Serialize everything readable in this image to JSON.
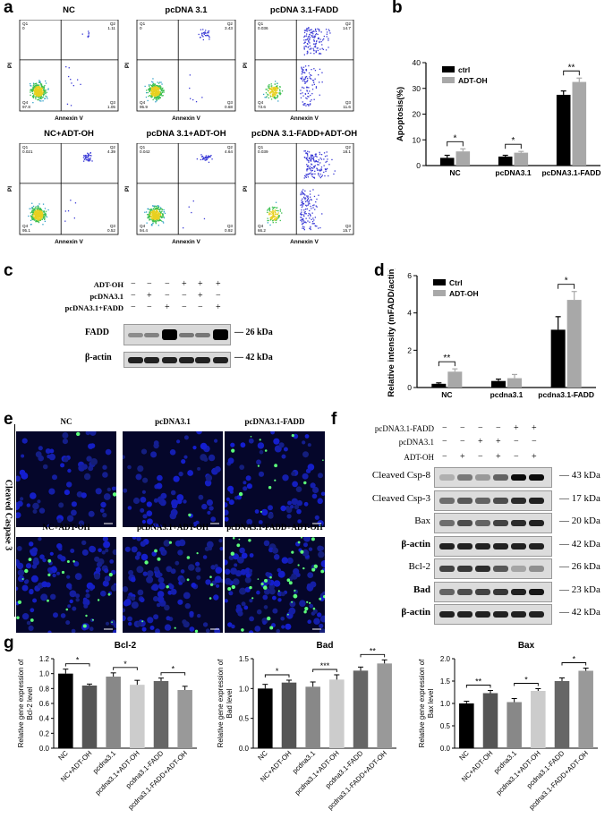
{
  "panel_labels": {
    "a": "a",
    "b": "b",
    "c": "c",
    "d": "d",
    "e": "e",
    "f": "f",
    "g": "g"
  },
  "panel_a": {
    "titles": [
      "NC",
      "pcDNA 3.1",
      "pcDNA 3.1-FADD",
      "NC+ADT-OH",
      "pcDNA 3.1+ADT-OH",
      "pcDNA 3.1-FADD+ADT-OH"
    ],
    "axis_x": "Annexin V",
    "axis_y": "PI",
    "quadrants": [
      {
        "q1": "0",
        "q2": "1.11",
        "q3": "1.05",
        "q4": "97.8",
        "q1l": "Q1",
        "q2l": "Q2",
        "q3l": "Q3",
        "q4l": "Q4"
      },
      {
        "q1": "0",
        "q2": "3.43",
        "q3": "0.68",
        "q4": "95.9",
        "q1l": "Q1",
        "q2l": "Q2",
        "q3l": "Q3",
        "q4l": "Q4"
      },
      {
        "q1": "0.036",
        "q2": "14.7",
        "q3": "11.6",
        "q4": "73.6",
        "q1l": "Q1",
        "q2l": "Q2",
        "q3l": "Q3",
        "q4l": "Q4"
      },
      {
        "q1": "0.021",
        "q2": "4.39",
        "q3": "0.52",
        "q4": "95.1",
        "q1l": "Q1",
        "q2l": "Q2",
        "q3l": "Q3",
        "q4l": "Q4"
      },
      {
        "q1": "0.042",
        "q2": "4.64",
        "q3": "0.92",
        "q4": "94.4",
        "q1l": "Q1",
        "q2l": "Q2",
        "q3l": "Q3",
        "q4l": "Q4"
      },
      {
        "q1": "0.039",
        "q2": "18.1",
        "q3": "15.7",
        "q4": "66.2",
        "q1l": "Q1",
        "q2l": "Q2",
        "q3l": "Q3",
        "q4l": "Q4"
      }
    ]
  },
  "panel_c": {
    "row_labels": [
      "ADT-OH",
      "pcDNA3.1",
      "pcDNA3.1+FADD"
    ],
    "signs": [
      [
        "−",
        "−",
        "−",
        "+",
        "+",
        "+"
      ],
      [
        "−",
        "+",
        "−",
        "−",
        "+",
        "−"
      ],
      [
        "−",
        "−",
        "+",
        "−",
        "−",
        "+"
      ]
    ],
    "bands": [
      "FADD",
      "β-actin"
    ],
    "kda": [
      "26 kDa",
      "42 kDa"
    ]
  },
  "panel_e": {
    "titles": [
      "NC",
      "pcDNA3.1",
      "pcDNA3.1-FADD",
      "NC+ADT-OH",
      "pcDNA3.1+ADT-OH",
      "pcDNA3.1-FADD+ADT-OH"
    ],
    "side_label": "Cleaved Caspase 3"
  },
  "panel_f": {
    "row_labels": [
      "pcDNA3.1-FADD",
      "pcDNA3.1",
      "ADT-OH"
    ],
    "signs": [
      [
        "−",
        "−",
        "−",
        "−",
        "+",
        "+"
      ],
      [
        "−",
        "−",
        "+",
        "+",
        "−",
        "−"
      ],
      [
        "−",
        "+",
        "−",
        "+",
        "−",
        "+"
      ]
    ],
    "bands": [
      "Cleaved Csp-8",
      "Cleaved Csp-3",
      "Bax",
      "β-actin",
      "Bcl-2",
      "Bad",
      "β-actin"
    ],
    "kda": [
      "43 kDa",
      "17 kDa",
      "20 kDa",
      "42 kDa",
      "26 kDa",
      "23 kDa",
      "42 kDa"
    ]
  },
  "chart_data": [
    {
      "id": "b",
      "type": "bar",
      "categories": [
        "NC",
        "pcDNA3.1",
        "pcDNA3.1-FADD"
      ],
      "series": [
        {
          "name": "ctrl",
          "values": [
            3.0,
            3.5,
            27.5
          ],
          "errors": [
            1.0,
            0.5,
            1.5
          ],
          "color": "#000000"
        },
        {
          "name": "ADT-OH",
          "values": [
            5.5,
            5.0,
            32.5
          ],
          "errors": [
            1.0,
            0.5,
            1.5
          ],
          "color": "#a8a8a8"
        }
      ],
      "ylabel": "Apoptosis(%)",
      "ylim": [
        0,
        40
      ],
      "yticks": [
        "0",
        "10",
        "20",
        "30",
        "40"
      ],
      "legend": "top-left",
      "significance": [
        "*",
        "*",
        "**"
      ]
    },
    {
      "id": "d",
      "type": "bar",
      "categories": [
        "NC",
        "pcdna3.1",
        "pcdna3.1-FADD"
      ],
      "series": [
        {
          "name": "Ctrl",
          "values": [
            0.2,
            0.35,
            3.1
          ],
          "errors": [
            0.05,
            0.1,
            0.7
          ],
          "color": "#000000"
        },
        {
          "name": "ADT-OH",
          "values": [
            0.85,
            0.5,
            4.7
          ],
          "errors": [
            0.15,
            0.2,
            0.45
          ],
          "color": "#a8a8a8"
        }
      ],
      "ylabel": "Relative intensity (mFADD/actin)",
      "ylim": [
        0,
        6
      ],
      "yticks": [
        "0",
        "2",
        "4",
        "6"
      ],
      "legend": "top-left",
      "significance": [
        "**",
        "",
        "*"
      ]
    },
    {
      "id": "g1",
      "type": "bar",
      "title": "Bcl-2",
      "categories": [
        "NC",
        "NC+ADT-OH",
        "pcdna3.1",
        "pcdna3.1+ADT-OH",
        "pcdna3.1-FADD",
        "pcdna3.1-FADD+ADT-OH"
      ],
      "values": [
        1.0,
        0.84,
        0.96,
        0.85,
        0.9,
        0.78
      ],
      "errors": [
        0.06,
        0.02,
        0.05,
        0.06,
        0.04,
        0.05
      ],
      "colors": [
        "#000000",
        "#555555",
        "#888888",
        "#cccccc",
        "#666666",
        "#999999"
      ],
      "ylabel": "Relative gene expression of Bcl-2 level",
      "ylim": [
        0,
        1.2
      ],
      "yticks": [
        "0.0",
        "0.2",
        "0.4",
        "0.6",
        "0.8",
        "1.0",
        "1.2"
      ],
      "significance": [
        "*",
        "*",
        "*"
      ]
    },
    {
      "id": "g2",
      "type": "bar",
      "title": "Bad",
      "categories": [
        "NC",
        "NC+ADT-OH",
        "pcdna3.1",
        "pcdna3.1+ADT-OH",
        "pcdna3.1-FADD",
        "pcdna3.1-FADD+ADT-OH"
      ],
      "values": [
        1.0,
        1.1,
        1.03,
        1.15,
        1.3,
        1.42
      ],
      "errors": [
        0.07,
        0.04,
        0.08,
        0.08,
        0.06,
        0.06
      ],
      "colors": [
        "#000000",
        "#555555",
        "#888888",
        "#cccccc",
        "#666666",
        "#999999"
      ],
      "ylabel": "Relative gene expression of Bad level",
      "ylim": [
        0,
        1.5
      ],
      "yticks": [
        "0.0",
        "0.5",
        "1.0",
        "1.5"
      ],
      "significance": [
        "*",
        "***",
        "**"
      ]
    },
    {
      "id": "g3",
      "type": "bar",
      "title": "Bax",
      "categories": [
        "NC",
        "NC+ADT-OH",
        "pcdna3.1",
        "pcdna3.1+ADT-OH",
        "pcdna3.1-FADD",
        "pcdna3.1-FADD+ADT-OH"
      ],
      "values": [
        1.0,
        1.23,
        1.03,
        1.28,
        1.5,
        1.73
      ],
      "errors": [
        0.05,
        0.06,
        0.08,
        0.05,
        0.07,
        0.06
      ],
      "colors": [
        "#000000",
        "#555555",
        "#888888",
        "#cccccc",
        "#666666",
        "#999999"
      ],
      "ylabel": "Relative gene expression of Bax level",
      "ylim": [
        0,
        2.0
      ],
      "yticks": [
        "0.0",
        "0.5",
        "1.0",
        "1.5",
        "2.0"
      ],
      "significance": [
        "**",
        "*",
        "*"
      ]
    }
  ]
}
